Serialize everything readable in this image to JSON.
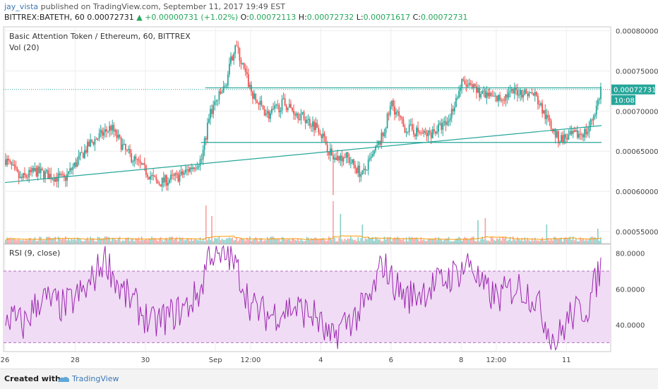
{
  "header": {
    "user": "jay_vista",
    "published": "published on TradingView.com, September 11, 2017 19:49 EST",
    "symbol": "BITTREX:BATETH, 60",
    "last": "0.00072731",
    "change": "▲ +0.00000731 (+1.02%)",
    "o_label": "O:",
    "o_value": "0.00072113",
    "h_label": "H:",
    "h_value": "0.00072732",
    "l_label": "L:",
    "l_value": "0.00071617",
    "c_label": "C:",
    "c_value": "0.00072731"
  },
  "footer": {
    "created": "Created with",
    "brand": "TradingView"
  },
  "colors": {
    "up": "#26a69a",
    "down": "#ef5350",
    "rsi": "#9c27b0",
    "rsi_band": "#f0dcf5",
    "trend": "#26a69a",
    "volume_ma": "#ff9800"
  },
  "chart_data": [
    {
      "type": "candlestick",
      "title": "Basic Attention Token / Ethereum, 60, BITTREX",
      "volume_label": "Vol (20)",
      "price_label": "0.00072731",
      "countdown": "10:08",
      "ylim": [
        0.000535,
        0.000805
      ],
      "y_ticks": [
        "0.00080000",
        "0.00075000",
        "0.00070000",
        "0.00065000",
        "0.00060000",
        "0.00055000"
      ],
      "y_tick_values": [
        0.0008,
        0.00075,
        0.0007,
        0.00065,
        0.0006,
        0.00055
      ],
      "x_ticks": [
        "26",
        "28",
        "30",
        "Sep",
        "12:00",
        "4",
        "6",
        "8",
        "12:00",
        "11"
      ],
      "x_tick_positions": [
        0,
        48,
        96,
        144,
        168,
        216,
        264,
        312,
        336,
        384
      ],
      "n_bars": 408,
      "price_anchors": [
        [
          0,
          0.00064
        ],
        [
          10,
          0.000615
        ],
        [
          20,
          0.000625
        ],
        [
          40,
          0.000615
        ],
        [
          58,
          0.00066
        ],
        [
          72,
          0.00068
        ],
        [
          82,
          0.00065
        ],
        [
          96,
          0.000625
        ],
        [
          104,
          0.00061
        ],
        [
          120,
          0.00062
        ],
        [
          134,
          0.00064
        ],
        [
          140,
          0.0007
        ],
        [
          150,
          0.00073
        ],
        [
          157,
          0.000785
        ],
        [
          163,
          0.00075
        ],
        [
          170,
          0.000715
        ],
        [
          180,
          0.000695
        ],
        [
          190,
          0.00071
        ],
        [
          205,
          0.00069
        ],
        [
          214,
          0.00068
        ],
        [
          224,
          0.00064
        ],
        [
          232,
          0.000645
        ],
        [
          244,
          0.00062
        ],
        [
          250,
          0.00064
        ],
        [
          258,
          0.00067
        ],
        [
          264,
          0.00071
        ],
        [
          272,
          0.00068
        ],
        [
          288,
          0.00067
        ],
        [
          302,
          0.000685
        ],
        [
          312,
          0.000735
        ],
        [
          322,
          0.000725
        ],
        [
          336,
          0.000715
        ],
        [
          350,
          0.000725
        ],
        [
          362,
          0.00072
        ],
        [
          370,
          0.00069
        ],
        [
          378,
          0.000665
        ],
        [
          390,
          0.00067
        ],
        [
          398,
          0.000675
        ],
        [
          404,
          0.000705
        ],
        [
          407,
          0.000727
        ]
      ],
      "trendlines": [
        {
          "points": [
            [
              0,
              0.000611
            ],
            [
              407,
              0.000682
            ]
          ]
        },
        {
          "points": [
            [
              134,
              0.000661
            ],
            [
              407,
              0.000661
            ]
          ]
        },
        {
          "points": [
            [
              137,
              0.000729
            ],
            [
              407,
              0.000729
            ]
          ]
        }
      ],
      "volume_spikes": [
        [
          137,
          0.9
        ],
        [
          141,
          0.65
        ],
        [
          224,
          1.0
        ],
        [
          229,
          0.7
        ],
        [
          244,
          0.45
        ],
        [
          323,
          0.55
        ],
        [
          328,
          0.6
        ],
        [
          370,
          0.45
        ],
        [
          405,
          0.35
        ]
      ]
    },
    {
      "type": "line",
      "title": "RSI (9, close)",
      "ylim": [
        25,
        85
      ],
      "y_ticks": [
        "80.0000",
        "60.0000",
        "40.0000"
      ],
      "y_tick_values": [
        80,
        60,
        40
      ],
      "band": [
        30,
        70
      ],
      "anchors": [
        [
          0,
          45
        ],
        [
          12,
          40
        ],
        [
          24,
          55
        ],
        [
          40,
          50
        ],
        [
          56,
          60
        ],
        [
          68,
          78
        ],
        [
          78,
          60
        ],
        [
          90,
          50
        ],
        [
          100,
          40
        ],
        [
          112,
          45
        ],
        [
          124,
          50
        ],
        [
          134,
          60
        ],
        [
          139,
          83
        ],
        [
          146,
          75
        ],
        [
          152,
          80
        ],
        [
          160,
          68
        ],
        [
          168,
          50
        ],
        [
          180,
          45
        ],
        [
          196,
          50
        ],
        [
          212,
          45
        ],
        [
          222,
          30
        ],
        [
          230,
          40
        ],
        [
          240,
          45
        ],
        [
          250,
          55
        ],
        [
          258,
          75
        ],
        [
          264,
          65
        ],
        [
          274,
          55
        ],
        [
          288,
          60
        ],
        [
          300,
          65
        ],
        [
          310,
          70
        ],
        [
          318,
          75
        ],
        [
          326,
          60
        ],
        [
          336,
          55
        ],
        [
          350,
          62
        ],
        [
          362,
          55
        ],
        [
          370,
          40
        ],
        [
          376,
          30
        ],
        [
          386,
          45
        ],
        [
          398,
          50
        ],
        [
          402,
          60
        ],
        [
          407,
          72
        ]
      ]
    }
  ]
}
